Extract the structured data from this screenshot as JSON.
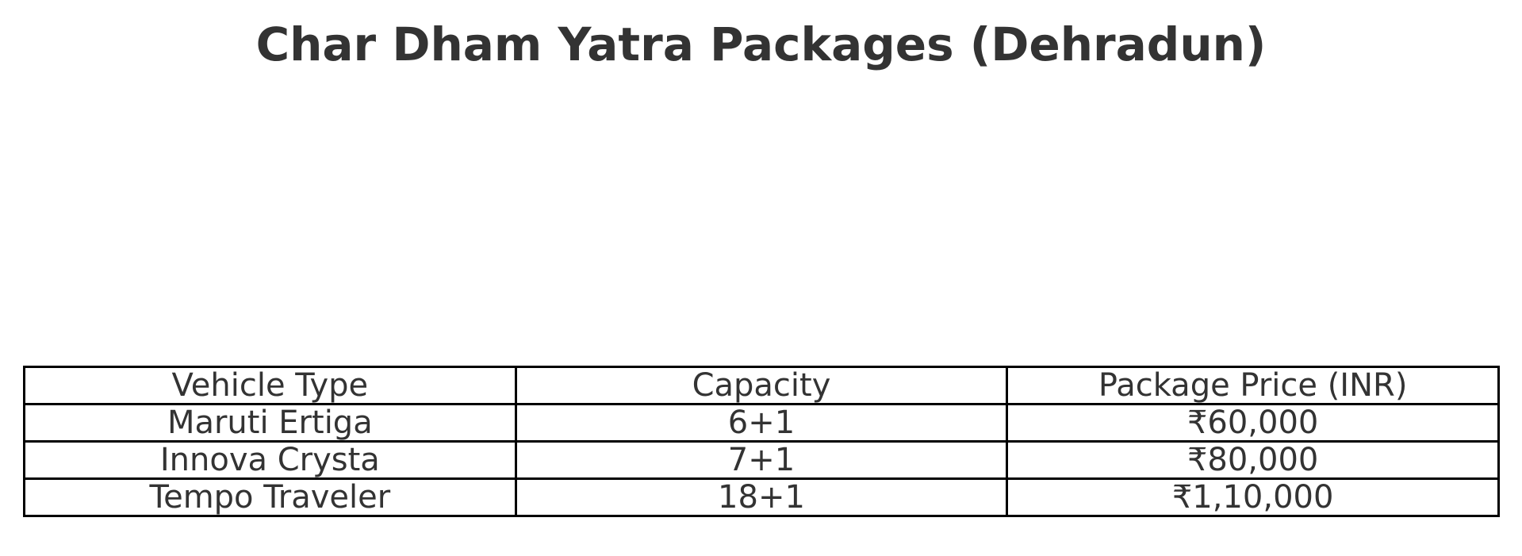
{
  "header": {
    "title": "Char Dham Yatra Packages (Dehradun)"
  },
  "table": {
    "columns": [
      "Vehicle Type",
      "Capacity",
      "Package Price (INR)"
    ],
    "rows": [
      [
        "Maruti Ertiga",
        "6+1",
        "₹60,000"
      ],
      [
        "Innova Crysta",
        "7+1",
        "₹80,000"
      ],
      [
        "Tempo Traveler",
        "18+1",
        "₹1,10,000"
      ]
    ]
  }
}
